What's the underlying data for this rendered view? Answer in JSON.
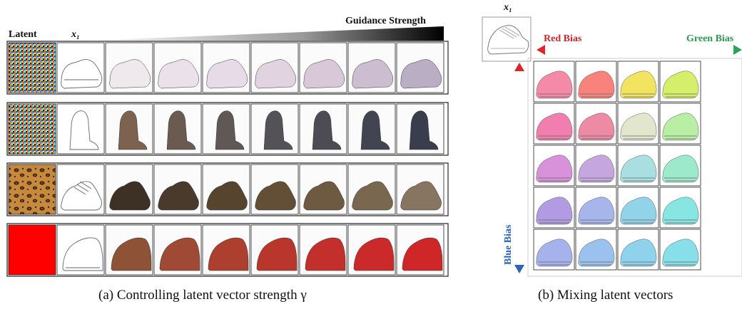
{
  "panel_a": {
    "header_latent": "Latent",
    "header_x1": "x₁",
    "header_guidance": "Guidance Strength",
    "caption": "(a) Controlling latent vector strength γ",
    "rows": [
      {
        "latent": "noise",
        "sketch": "sneaker-sketch",
        "shoe": "sneaker",
        "colors": [
          "#efe9ee",
          "#eae1ea",
          "#e6dbe6",
          "#e1d3e0",
          "#d9c9d8",
          "#cdbdd0",
          "#b9aec4",
          "#8f8aa6",
          "#5e5b78"
        ]
      },
      {
        "latent": "noise",
        "sketch": "boot-sketch",
        "shoe": "boot",
        "colors": [
          "#7c624f",
          "#6a5a50",
          "#5f5855",
          "#555257",
          "#4d4b54",
          "#434451",
          "#3a3d4b",
          "#323648",
          "#2a2f43"
        ]
      },
      {
        "latent": "leopard",
        "sketch": "lace-sketch",
        "shoe": "lace",
        "colors": [
          "#3d3126",
          "#4a3a2b",
          "#57442f",
          "#634e36",
          "#6e5a41",
          "#7a6750",
          "#877562",
          "#978673",
          "#a99a86"
        ]
      },
      {
        "latent": "red",
        "sketch": "clog-sketch",
        "shoe": "clog",
        "colors": [
          "#8e5237",
          "#9f4a34",
          "#ad3f2f",
          "#b9362c",
          "#c32f2a",
          "#ca2a29",
          "#cf2728",
          "#d22527",
          "#d42426"
        ]
      }
    ]
  },
  "panel_b": {
    "header_x1": "x₁",
    "red_bias": "Red Bias",
    "green_bias": "Green Bias",
    "blue_bias": "Blue Bias",
    "caption": "(b) Mixing latent vectors",
    "grid_colors": [
      [
        "#f58aa8",
        "#f7837c",
        "#f2e361",
        "#d6ef6a",
        "#a7ea86"
      ],
      [
        "#f07eae",
        "#ed8aa4",
        "#e2e6cc",
        "#b9efa4",
        "#9ef0ba"
      ],
      [
        "#d792d9",
        "#c6a6df",
        "#a9dfe0",
        "#9ceacb",
        "#96eed2"
      ],
      [
        "#b39be4",
        "#a6b6ea",
        "#91d3e9",
        "#87e5e2",
        "#8fe9da"
      ],
      [
        "#a5b2ec",
        "#9bc1ee",
        "#8fd2ec",
        "#86dfe9",
        "#8ae8e2"
      ]
    ]
  }
}
